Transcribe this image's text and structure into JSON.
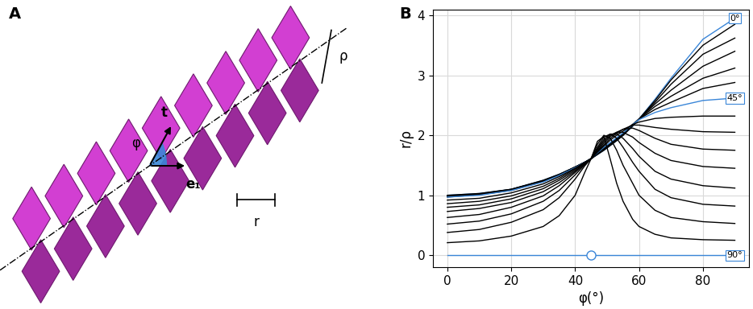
{
  "diagram": {
    "panel_label": "A",
    "labels": {
      "t": "t",
      "e1": "e₁",
      "phi": "φ",
      "r": "r",
      "rho": "ρ"
    }
  },
  "chart_data": {
    "type": "line",
    "panel_label": "B",
    "x_label": "φ(°)",
    "y_label": "r/ρ",
    "xlim": [
      -4.5,
      94.5
    ],
    "ylim": [
      -0.2,
      4.1
    ],
    "xticks": [
      0,
      20,
      40,
      60,
      80
    ],
    "yticks": [
      0,
      1,
      2,
      3,
      4
    ],
    "grid": true,
    "x": [
      0,
      10,
      20,
      30,
      35,
      40,
      43,
      45,
      47,
      49,
      51,
      53,
      55,
      58,
      60,
      65,
      70,
      80,
      90
    ],
    "series": [
      {
        "name": "0°",
        "color": "#3a86d8",
        "values": [
          1.0,
          1.03,
          1.1,
          1.25,
          1.35,
          1.47,
          1.55,
          1.61,
          1.68,
          1.75,
          1.83,
          1.91,
          2.0,
          2.15,
          2.27,
          2.6,
          2.95,
          3.6,
          3.95
        ]
      },
      {
        "color": "#000000",
        "values": [
          1.0,
          1.03,
          1.1,
          1.25,
          1.35,
          1.47,
          1.55,
          1.61,
          1.68,
          1.75,
          1.83,
          1.91,
          2.0,
          2.16,
          2.27,
          2.58,
          2.92,
          3.5,
          3.85
        ]
      },
      {
        "color": "#000000",
        "values": [
          0.99,
          1.02,
          1.1,
          1.24,
          1.34,
          1.47,
          1.55,
          1.61,
          1.69,
          1.76,
          1.84,
          1.92,
          2.0,
          2.16,
          2.27,
          2.55,
          2.85,
          3.35,
          3.62
        ]
      },
      {
        "color": "#000000",
        "values": [
          0.98,
          1.02,
          1.09,
          1.24,
          1.34,
          1.47,
          1.55,
          1.61,
          1.69,
          1.77,
          1.85,
          1.93,
          2.01,
          2.17,
          2.27,
          2.52,
          2.75,
          3.15,
          3.4
        ]
      },
      {
        "color": "#000000",
        "values": [
          0.98,
          1.01,
          1.09,
          1.23,
          1.34,
          1.47,
          1.55,
          1.61,
          1.7,
          1.78,
          1.86,
          1.94,
          2.02,
          2.18,
          2.27,
          2.48,
          2.65,
          2.95,
          3.12
        ]
      },
      {
        "color": "#000000",
        "values": [
          0.97,
          1.01,
          1.08,
          1.23,
          1.33,
          1.46,
          1.55,
          1.61,
          1.7,
          1.79,
          1.87,
          1.95,
          2.03,
          2.18,
          2.27,
          2.43,
          2.55,
          2.78,
          2.88
        ]
      },
      {
        "name": "45°",
        "color": "#3a86d8",
        "values": [
          0.97,
          1.0,
          1.08,
          1.22,
          1.33,
          1.46,
          1.55,
          1.61,
          1.71,
          1.8,
          1.88,
          1.96,
          2.04,
          2.18,
          2.26,
          2.38,
          2.46,
          2.58,
          2.62
        ]
      },
      {
        "color": "#000000",
        "values": [
          0.92,
          0.95,
          1.04,
          1.19,
          1.31,
          1.45,
          1.55,
          1.61,
          1.72,
          1.82,
          1.92,
          2.0,
          2.07,
          2.18,
          2.22,
          2.28,
          2.3,
          2.32,
          2.32
        ]
      },
      {
        "color": "#000000",
        "values": [
          0.86,
          0.9,
          0.99,
          1.15,
          1.28,
          1.44,
          1.54,
          1.61,
          1.73,
          1.84,
          1.95,
          2.03,
          2.1,
          2.17,
          2.17,
          2.13,
          2.1,
          2.06,
          2.05
        ]
      },
      {
        "color": "#000000",
        "values": [
          0.8,
          0.84,
          0.94,
          1.11,
          1.25,
          1.42,
          1.54,
          1.61,
          1.74,
          1.87,
          1.98,
          2.05,
          2.1,
          2.12,
          2.08,
          1.95,
          1.85,
          1.77,
          1.75
        ]
      },
      {
        "color": "#000000",
        "values": [
          0.73,
          0.78,
          0.88,
          1.06,
          1.21,
          1.4,
          1.53,
          1.61,
          1.76,
          1.9,
          2.0,
          2.05,
          2.05,
          1.97,
          1.88,
          1.7,
          1.58,
          1.48,
          1.45
        ]
      },
      {
        "color": "#000000",
        "values": [
          0.63,
          0.68,
          0.8,
          0.99,
          1.16,
          1.38,
          1.52,
          1.61,
          1.78,
          1.93,
          2.02,
          2.02,
          1.95,
          1.78,
          1.65,
          1.4,
          1.27,
          1.16,
          1.12
        ]
      },
      {
        "color": "#000000",
        "values": [
          0.52,
          0.57,
          0.69,
          0.9,
          1.08,
          1.34,
          1.51,
          1.61,
          1.8,
          1.97,
          2.02,
          1.95,
          1.8,
          1.55,
          1.4,
          1.1,
          0.96,
          0.85,
          0.82
        ]
      },
      {
        "color": "#000000",
        "values": [
          0.38,
          0.43,
          0.55,
          0.76,
          0.96,
          1.27,
          1.49,
          1.61,
          1.85,
          2.0,
          1.95,
          1.75,
          1.5,
          1.2,
          1.0,
          0.75,
          0.63,
          0.56,
          0.53
        ]
      },
      {
        "color": "#000000",
        "values": [
          0.21,
          0.24,
          0.32,
          0.48,
          0.66,
          1.0,
          1.38,
          1.61,
          1.9,
          1.98,
          1.6,
          1.2,
          0.9,
          0.6,
          0.48,
          0.35,
          0.29,
          0.26,
          0.25
        ]
      },
      {
        "name": "90°",
        "color": "#3a86d8",
        "values": [
          0,
          0,
          0,
          0,
          0,
          0,
          0,
          0,
          0,
          0,
          0,
          0,
          0,
          0,
          0,
          0,
          0,
          0,
          0
        ]
      }
    ],
    "highlight": {
      "x": 45,
      "y": 0,
      "marker": "o",
      "color": "#3a86d8"
    }
  }
}
